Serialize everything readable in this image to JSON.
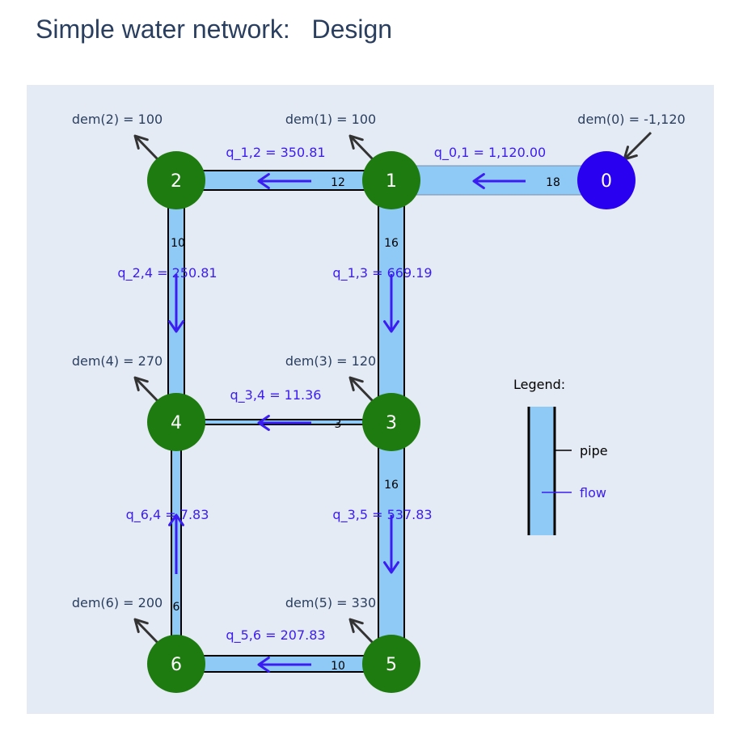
{
  "title": "Simple water network:   Design",
  "colors": {
    "plot_bg": "#e5ebf5",
    "pipe_fill": "#8fcaf7",
    "pipe_edge": "#000000",
    "flow": "#3b1cf2",
    "label_flow": "#3b1cf2",
    "node_source": "#2a00f0",
    "node": "#1e7b0f",
    "demand_text": "#2a3f5f",
    "demand_arrow": "#333333"
  },
  "nodes": [
    {
      "id": "0",
      "label": "0",
      "type": "source",
      "demand_label": "dem(0) = -1,120"
    },
    {
      "id": "1",
      "label": "1",
      "type": "junction",
      "demand_label": "dem(1) = 100"
    },
    {
      "id": "2",
      "label": "2",
      "type": "junction",
      "demand_label": "dem(2) = 100"
    },
    {
      "id": "3",
      "label": "3",
      "type": "junction",
      "demand_label": "dem(3) = 120"
    },
    {
      "id": "4",
      "label": "4",
      "type": "junction",
      "demand_label": "dem(4) = 270"
    },
    {
      "id": "5",
      "label": "5",
      "type": "junction",
      "demand_label": "dem(5) = 330"
    },
    {
      "id": "6",
      "label": "6",
      "type": "junction",
      "demand_label": "dem(6) = 200"
    }
  ],
  "pipes": [
    {
      "id": "0-1",
      "from": "0",
      "to": "1",
      "diameter": 18,
      "diameter_label": "18",
      "flow": 1120.0,
      "flow_label": "q_0,1 = 1,120.00"
    },
    {
      "id": "1-2",
      "from": "1",
      "to": "2",
      "diameter": 12,
      "diameter_label": "12",
      "flow": 350.81,
      "flow_label": "q_1,2 = 350.81"
    },
    {
      "id": "1-3",
      "from": "1",
      "to": "3",
      "diameter": 16,
      "diameter_label": "16",
      "flow": 669.19,
      "flow_label": "q_1,3 = 669.19"
    },
    {
      "id": "2-4",
      "from": "2",
      "to": "4",
      "diameter": 10,
      "diameter_label": "10",
      "flow": 250.81,
      "flow_label": "q_2,4 = 250.81"
    },
    {
      "id": "3-4",
      "from": "3",
      "to": "4",
      "diameter": 3,
      "diameter_label": "3",
      "flow": 11.36,
      "flow_label": "q_3,4 = 11.36"
    },
    {
      "id": "3-5",
      "from": "3",
      "to": "5",
      "diameter": 16,
      "diameter_label": "16",
      "flow": 537.83,
      "flow_label": "q_3,5 = 537.83"
    },
    {
      "id": "6-4",
      "from": "6",
      "to": "4",
      "diameter": 6,
      "diameter_label": "6",
      "flow": 7.83,
      "flow_label": "q_6,4 = 7.83"
    },
    {
      "id": "5-6",
      "from": "5",
      "to": "6",
      "diameter": 10,
      "diameter_label": "10",
      "flow": 207.83,
      "flow_label": "q_5,6 = 207.83"
    }
  ],
  "legend": {
    "title": "Legend:",
    "pipe_label": "pipe",
    "flow_label": "flow"
  }
}
